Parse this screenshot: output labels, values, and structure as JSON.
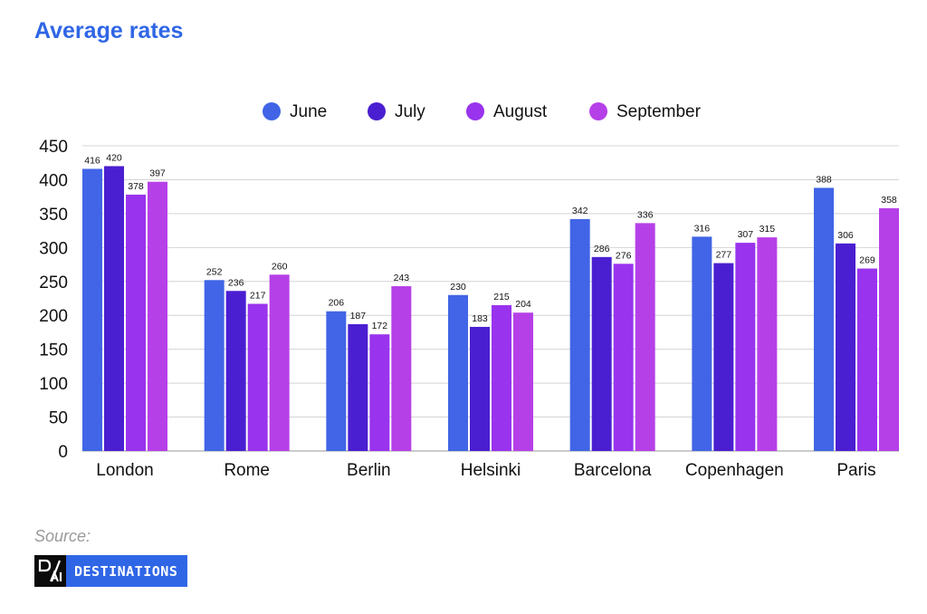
{
  "header": {
    "title": "Average rates"
  },
  "footer": {
    "source_label": "Source:",
    "brand_text": "DESTINATIONS",
    "brand_mark": "D/AI"
  },
  "colors": {
    "June": "#4165e6",
    "July": "#4a1fd1",
    "August": "#9933ee",
    "September": "#b640e8",
    "grid": "#d4d4d4",
    "text": "#111111"
  },
  "chart_data": {
    "type": "bar",
    "title": "Average rates",
    "categories": [
      "London",
      "Rome",
      "Berlin",
      "Helsinki",
      "Barcelona",
      "Copenhagen",
      "Paris"
    ],
    "series": [
      {
        "name": "June",
        "values": [
          416,
          252,
          206,
          230,
          342,
          316,
          388
        ]
      },
      {
        "name": "July",
        "values": [
          420,
          236,
          187,
          183,
          286,
          277,
          306
        ]
      },
      {
        "name": "August",
        "values": [
          378,
          217,
          172,
          215,
          276,
          307,
          269
        ]
      },
      {
        "name": "September",
        "values": [
          397,
          260,
          243,
          204,
          336,
          315,
          358
        ]
      }
    ],
    "ylim": [
      0,
      450
    ],
    "yticks": [
      0,
      50,
      100,
      150,
      200,
      250,
      300,
      350,
      400,
      450
    ],
    "grid": true,
    "legend_position": "top-center",
    "data_labels": true
  }
}
